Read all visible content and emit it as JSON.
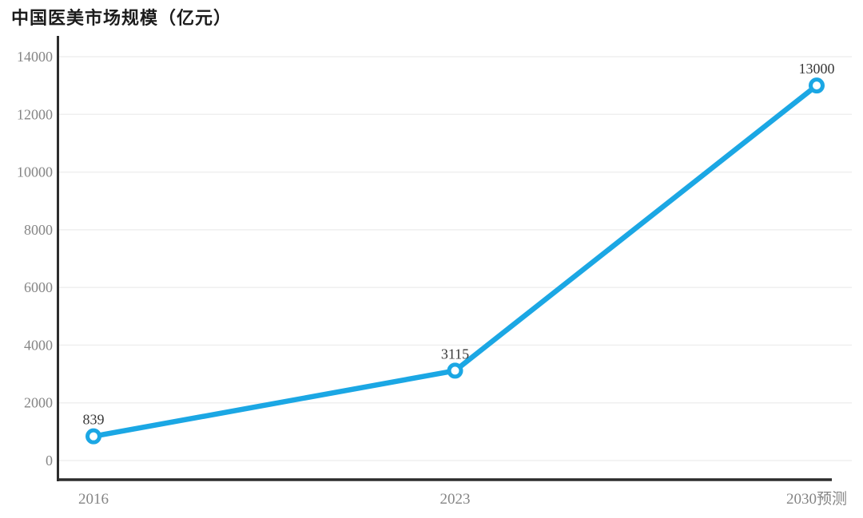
{
  "title": "中国医美市场规模（亿元）",
  "chart_data": {
    "type": "line",
    "title": "中国医美市场规模（亿元）",
    "categories": [
      "2016",
      "2023",
      "2030预测"
    ],
    "values": [
      839,
      3115,
      13000
    ],
    "data_labels": [
      "839",
      "3115",
      "13000"
    ],
    "series": [
      {
        "name": "中国医美市场规模",
        "values": [
          839,
          3115,
          13000
        ]
      }
    ],
    "ylim": [
      0,
      14000
    ],
    "yticks": [
      0,
      2000,
      4000,
      6000,
      8000,
      10000,
      12000,
      14000
    ],
    "grid": true,
    "legend_position": "none",
    "colors": {
      "line": "#1ba7e4",
      "marker_fill": "#ffffff",
      "axis": "#2d2d2d",
      "grid": "#efefef",
      "tick_label": "#858585",
      "data_label": "#383838",
      "title": "#1c1c1c",
      "background": "#ffffff"
    }
  }
}
